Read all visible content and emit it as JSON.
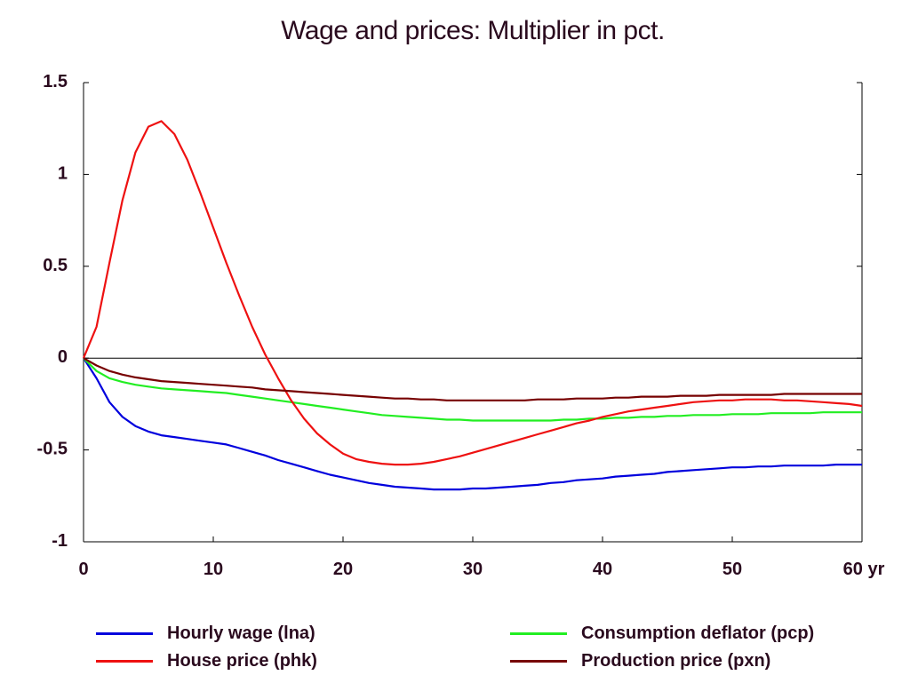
{
  "chart_data": {
    "type": "line",
    "title": "Wage and prices: Multiplier in pct.",
    "x_tick_labels": [
      "0",
      "10",
      "20",
      "30",
      "40",
      "50",
      "60 yr"
    ],
    "x_ticks": [
      0,
      10,
      20,
      30,
      40,
      50,
      60
    ],
    "y_tick_labels": [
      "1.5",
      "1",
      "0.5",
      "0",
      "-0.5",
      "-1"
    ],
    "y_ticks": [
      1.5,
      1,
      0.5,
      0,
      -0.5,
      -1
    ],
    "xlim": [
      0,
      60
    ],
    "ylim": [
      -1,
      1.5
    ],
    "grid": false,
    "zero_line": true,
    "legend_position": "bottom",
    "x": [
      0,
      1,
      2,
      3,
      4,
      5,
      6,
      7,
      8,
      9,
      10,
      11,
      12,
      13,
      14,
      15,
      16,
      17,
      18,
      19,
      20,
      21,
      22,
      23,
      24,
      25,
      26,
      27,
      28,
      29,
      30,
      31,
      32,
      33,
      34,
      35,
      36,
      37,
      38,
      39,
      40,
      41,
      42,
      43,
      44,
      45,
      46,
      47,
      48,
      49,
      50,
      51,
      52,
      53,
      54,
      55,
      56,
      57,
      58,
      59,
      60
    ],
    "series": [
      {
        "name": "Hourly wage (lna)",
        "color": "#0000dd",
        "values": [
          0,
          -0.11,
          -0.24,
          -0.32,
          -0.37,
          -0.4,
          -0.42,
          -0.43,
          -0.44,
          -0.45,
          -0.46,
          -0.47,
          -0.49,
          -0.51,
          -0.53,
          -0.555,
          -0.575,
          -0.595,
          -0.615,
          -0.635,
          -0.65,
          -0.665,
          -0.68,
          -0.69,
          -0.7,
          -0.705,
          -0.71,
          -0.715,
          -0.715,
          -0.715,
          -0.71,
          -0.71,
          -0.705,
          -0.7,
          -0.695,
          -0.69,
          -0.68,
          -0.675,
          -0.665,
          -0.66,
          -0.655,
          -0.645,
          -0.64,
          -0.635,
          -0.63,
          -0.62,
          -0.615,
          -0.61,
          -0.605,
          -0.6,
          -0.595,
          -0.595,
          -0.59,
          -0.59,
          -0.585,
          -0.585,
          -0.585,
          -0.585,
          -0.58,
          -0.58,
          -0.58
        ]
      },
      {
        "name": "Consumption deflator (pcp)",
        "color": "#22ee22",
        "values": [
          0,
          -0.07,
          -0.11,
          -0.13,
          -0.145,
          -0.155,
          -0.165,
          -0.17,
          -0.175,
          -0.18,
          -0.185,
          -0.19,
          -0.2,
          -0.21,
          -0.22,
          -0.23,
          -0.24,
          -0.25,
          -0.26,
          -0.27,
          -0.28,
          -0.29,
          -0.3,
          -0.31,
          -0.315,
          -0.32,
          -0.325,
          -0.33,
          -0.335,
          -0.335,
          -0.34,
          -0.34,
          -0.34,
          -0.34,
          -0.34,
          -0.34,
          -0.34,
          -0.335,
          -0.335,
          -0.33,
          -0.33,
          -0.325,
          -0.325,
          -0.32,
          -0.32,
          -0.315,
          -0.315,
          -0.31,
          -0.31,
          -0.31,
          -0.305,
          -0.305,
          -0.305,
          -0.3,
          -0.3,
          -0.3,
          -0.3,
          -0.295,
          -0.295,
          -0.295,
          -0.295
        ]
      },
      {
        "name": "House price (phk)",
        "color": "#ee1111",
        "values": [
          0,
          0.17,
          0.52,
          0.86,
          1.12,
          1.26,
          1.29,
          1.22,
          1.08,
          0.9,
          0.71,
          0.52,
          0.34,
          0.17,
          0.02,
          -0.11,
          -0.23,
          -0.33,
          -0.41,
          -0.47,
          -0.52,
          -0.55,
          -0.565,
          -0.575,
          -0.58,
          -0.58,
          -0.575,
          -0.565,
          -0.55,
          -0.535,
          -0.515,
          -0.495,
          -0.475,
          -0.455,
          -0.435,
          -0.415,
          -0.395,
          -0.375,
          -0.355,
          -0.34,
          -0.32,
          -0.305,
          -0.29,
          -0.28,
          -0.27,
          -0.26,
          -0.25,
          -0.24,
          -0.235,
          -0.23,
          -0.23,
          -0.225,
          -0.225,
          -0.225,
          -0.23,
          -0.23,
          -0.235,
          -0.24,
          -0.245,
          -0.25,
          -0.26
        ]
      },
      {
        "name": "Production price (pxn)",
        "color": "#770000",
        "values": [
          0,
          -0.04,
          -0.07,
          -0.09,
          -0.105,
          -0.115,
          -0.125,
          -0.13,
          -0.135,
          -0.14,
          -0.145,
          -0.15,
          -0.155,
          -0.16,
          -0.17,
          -0.175,
          -0.18,
          -0.185,
          -0.19,
          -0.195,
          -0.2,
          -0.205,
          -0.21,
          -0.215,
          -0.22,
          -0.22,
          -0.225,
          -0.225,
          -0.23,
          -0.23,
          -0.23,
          -0.23,
          -0.23,
          -0.23,
          -0.23,
          -0.225,
          -0.225,
          -0.225,
          -0.22,
          -0.22,
          -0.22,
          -0.215,
          -0.215,
          -0.21,
          -0.21,
          -0.21,
          -0.205,
          -0.205,
          -0.205,
          -0.2,
          -0.2,
          -0.2,
          -0.2,
          -0.2,
          -0.195,
          -0.195,
          -0.195,
          -0.195,
          -0.195,
          -0.195,
          -0.195
        ]
      }
    ]
  },
  "legend": [
    {
      "label": "Hourly wage (lna)",
      "color": "#0000dd"
    },
    {
      "label": "Consumption deflator (pcp)",
      "color": "#22ee22"
    },
    {
      "label": "House price (phk)",
      "color": "#ee1111"
    },
    {
      "label": "Production price (pxn)",
      "color": "#770000"
    }
  ]
}
